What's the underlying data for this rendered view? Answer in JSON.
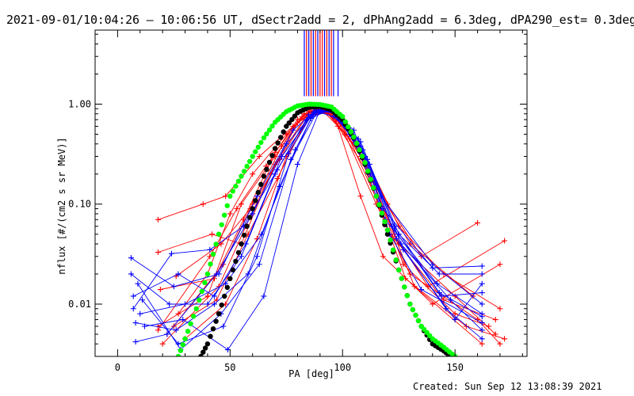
{
  "title": "2021-09-01/10:04:26 – 10:06:56 UT, dSectr2add = 2, dPhAng2add = 6.3deg, dPA290_est=  0.3deg",
  "footer": "Created: Sun Sep 12 13:08:39 2021",
  "chart_data": {
    "type": "line",
    "xlabel": "PA [deg]",
    "ylabel": "nflux [#/(cm2 s sr MeV)]",
    "xlim": [
      -10,
      182
    ],
    "ylim": [
      0.003,
      5.5
    ],
    "yscale": "log",
    "x_ticks": [
      0,
      50,
      100,
      150
    ],
    "x_tick_labels": [
      "0",
      "50",
      "100",
      "150"
    ],
    "y_ticks": [
      0.01,
      0.1,
      1.0
    ],
    "y_tick_labels": [
      "0.01",
      "0.10",
      "1.00"
    ],
    "colors": {
      "red_series": "#ff0000",
      "blue_series": "#0000ff",
      "fit_black": "#000000",
      "fit_green": "#00ff00"
    },
    "vertical_markers": {
      "description": "Vertical bars above the peak (from top of plot down to y≈1.2)",
      "red_x": [
        84,
        86,
        88,
        90,
        91,
        93,
        95
      ],
      "blue_x": [
        83,
        85,
        87,
        89,
        92,
        94,
        96,
        98
      ],
      "y_bottom": 1.2
    },
    "fit_curves": [
      {
        "color": "black",
        "marker": "filled-circle",
        "x": [
          37,
          40,
          45,
          50,
          55,
          60,
          65,
          70,
          75,
          80,
          85,
          90,
          95,
          100,
          105,
          110,
          115,
          120,
          125,
          130,
          135,
          140,
          145,
          148
        ],
        "y": [
          0.003,
          0.004,
          0.008,
          0.018,
          0.04,
          0.09,
          0.19,
          0.36,
          0.6,
          0.82,
          0.93,
          0.95,
          0.88,
          0.7,
          0.46,
          0.25,
          0.12,
          0.05,
          0.022,
          0.01,
          0.006,
          0.004,
          0.0034,
          0.003
        ]
      },
      {
        "color": "green",
        "marker": "filled-circle",
        "x": [
          27,
          30,
          35,
          40,
          45,
          50,
          55,
          60,
          65,
          70,
          75,
          80,
          85,
          90,
          95,
          100,
          105,
          110,
          115,
          120,
          125,
          130,
          135,
          140,
          145,
          150
        ],
        "y": [
          0.003,
          0.0045,
          0.009,
          0.02,
          0.05,
          0.12,
          0.19,
          0.3,
          0.46,
          0.66,
          0.84,
          0.96,
          1.0,
          0.99,
          0.94,
          0.75,
          0.47,
          0.26,
          0.12,
          0.055,
          0.022,
          0.01,
          0.006,
          0.0045,
          0.0037,
          0.003
        ]
      }
    ],
    "data_series": [
      {
        "color": "red",
        "x": [
          18,
          40,
          55,
          70,
          83,
          92,
          98,
          110,
          125,
          145,
          170
        ],
        "y": [
          0.006,
          0.012,
          0.1,
          0.3,
          0.8,
          0.92,
          0.6,
          0.3,
          0.06,
          0.02,
          0.009
        ]
      },
      {
        "color": "red",
        "x": [
          27,
          40,
          50,
          60,
          75,
          86,
          94,
          103,
          115,
          130,
          158
        ],
        "y": [
          0.008,
          0.02,
          0.08,
          0.2,
          0.5,
          0.9,
          0.85,
          0.55,
          0.15,
          0.04,
          0.012
        ]
      },
      {
        "color": "red",
        "x": [
          18,
          38,
          48,
          63,
          78,
          88,
          95,
          107,
          120,
          135,
          160
        ],
        "y": [
          0.07,
          0.1,
          0.12,
          0.3,
          0.6,
          0.87,
          0.8,
          0.4,
          0.1,
          0.03,
          0.065
        ]
      },
      {
        "color": "red",
        "x": [
          20,
          45,
          57,
          70,
          85,
          91,
          100,
          112,
          125,
          150,
          168
        ],
        "y": [
          0.004,
          0.015,
          0.06,
          0.25,
          0.85,
          0.9,
          0.7,
          0.2,
          0.04,
          0.012,
          0.005
        ]
      },
      {
        "color": "red",
        "x": [
          18,
          42,
          55,
          68,
          80,
          89,
          97,
          108,
          118,
          140,
          170
        ],
        "y": [
          0.033,
          0.05,
          0.04,
          0.2,
          0.65,
          0.95,
          0.7,
          0.12,
          0.03,
          0.01,
          0.025
        ]
      },
      {
        "color": "red",
        "x": [
          22,
          47,
          60,
          73,
          83,
          90,
          99,
          110,
          123,
          138,
          172
        ],
        "y": [
          0.005,
          0.025,
          0.1,
          0.38,
          0.8,
          0.93,
          0.65,
          0.25,
          0.05,
          0.015,
          0.043
        ]
      },
      {
        "color": "red",
        "x": [
          19,
          43,
          56,
          70,
          82,
          90,
          98,
          113,
          127,
          150,
          165
        ],
        "y": [
          0.014,
          0.018,
          0.07,
          0.33,
          0.75,
          0.91,
          0.6,
          0.18,
          0.025,
          0.008,
          0.006
        ]
      },
      {
        "color": "red",
        "x": [
          25,
          44,
          58,
          71,
          84,
          92,
          101,
          115,
          130,
          160,
          170
        ],
        "y": [
          0.006,
          0.011,
          0.05,
          0.18,
          0.7,
          0.88,
          0.5,
          0.1,
          0.02,
          0.007,
          0.004
        ]
      },
      {
        "color": "red",
        "x": [
          18,
          41,
          53,
          66,
          80,
          88,
          97,
          108,
          120,
          145,
          168
        ],
        "y": [
          0.0055,
          0.03,
          0.09,
          0.24,
          0.7,
          0.9,
          0.72,
          0.3,
          0.055,
          0.011,
          0.007
        ]
      },
      {
        "color": "red",
        "x": [
          26,
          46,
          59,
          72,
          85,
          93,
          103,
          117,
          128,
          155,
          172
        ],
        "y": [
          0.019,
          0.04,
          0.09,
          0.28,
          0.82,
          0.85,
          0.45,
          0.09,
          0.018,
          0.006,
          0.0045
        ]
      },
      {
        "color": "red",
        "x": [
          30,
          48,
          62,
          75,
          86,
          94,
          104,
          115,
          132,
          162
        ],
        "y": [
          0.0045,
          0.01,
          0.045,
          0.3,
          0.78,
          0.82,
          0.48,
          0.14,
          0.015,
          0.004
        ]
      },
      {
        "color": "blue",
        "x": [
          6,
          25,
          45,
          62,
          78,
          88,
          96,
          108,
          125,
          143,
          162
        ],
        "y": [
          0.029,
          0.015,
          0.02,
          0.12,
          0.55,
          0.85,
          0.75,
          0.42,
          0.05,
          0.02,
          0.02
        ]
      },
      {
        "color": "blue",
        "x": [
          6,
          23,
          40,
          55,
          70,
          84,
          93,
          103,
          117,
          140,
          162
        ],
        "y": [
          0.02,
          0.01,
          0.01,
          0.03,
          0.2,
          0.7,
          0.95,
          0.5,
          0.12,
          0.025,
          0.01
        ]
      },
      {
        "color": "blue",
        "x": [
          7,
          27,
          43,
          57,
          73,
          86,
          95,
          106,
          119,
          142,
          162
        ],
        "y": [
          0.012,
          0.02,
          0.012,
          0.04,
          0.3,
          0.75,
          0.88,
          0.4,
          0.07,
          0.016,
          0.008
        ]
      },
      {
        "color": "blue",
        "x": [
          8,
          22,
          44,
          60,
          75,
          87,
          96,
          110,
          121,
          135,
          162
        ],
        "y": [
          0.0042,
          0.005,
          0.02,
          0.08,
          0.4,
          0.8,
          0.85,
          0.3,
          0.05,
          0.014,
          0.0065
        ]
      },
      {
        "color": "blue",
        "x": [
          9,
          28,
          46,
          63,
          77,
          89,
          98,
          112,
          126,
          148,
          162
        ],
        "y": [
          0.016,
          0.0035,
          0.008,
          0.025,
          0.28,
          0.86,
          0.8,
          0.25,
          0.04,
          0.011,
          0.0055
        ]
      },
      {
        "color": "blue",
        "x": [
          10,
          30,
          48,
          64,
          79,
          88,
          97,
          109,
          122,
          144,
          162
        ],
        "y": [
          0.008,
          0.01,
          0.016,
          0.05,
          0.35,
          0.87,
          0.82,
          0.35,
          0.06,
          0.012,
          0.013
        ]
      },
      {
        "color": "blue",
        "x": [
          8,
          26,
          43,
          58,
          72,
          86,
          95,
          107,
          124,
          146,
          162
        ],
        "y": [
          0.0065,
          0.0055,
          0.01,
          0.02,
          0.15,
          0.72,
          0.9,
          0.45,
          0.045,
          0.009,
          0.0045
        ]
      },
      {
        "color": "blue",
        "x": [
          12,
          29,
          49,
          65,
          80,
          90,
          99,
          111,
          127,
          150,
          162
        ],
        "y": [
          0.006,
          0.007,
          0.0035,
          0.012,
          0.25,
          0.88,
          0.78,
          0.28,
          0.035,
          0.007,
          0.016
        ]
      },
      {
        "color": "blue",
        "x": [
          7,
          24,
          41,
          56,
          71,
          85,
          94,
          105,
          118,
          140,
          162
        ],
        "y": [
          0.009,
          0.032,
          0.035,
          0.06,
          0.22,
          0.78,
          0.9,
          0.55,
          0.09,
          0.023,
          0.024
        ]
      },
      {
        "color": "blue",
        "x": [
          11,
          27,
          47,
          62,
          76,
          87,
          96,
          108,
          123,
          143,
          162
        ],
        "y": [
          0.011,
          0.004,
          0.006,
          0.03,
          0.32,
          0.83,
          0.84,
          0.38,
          0.06,
          0.013,
          0.0075
        ]
      }
    ]
  }
}
